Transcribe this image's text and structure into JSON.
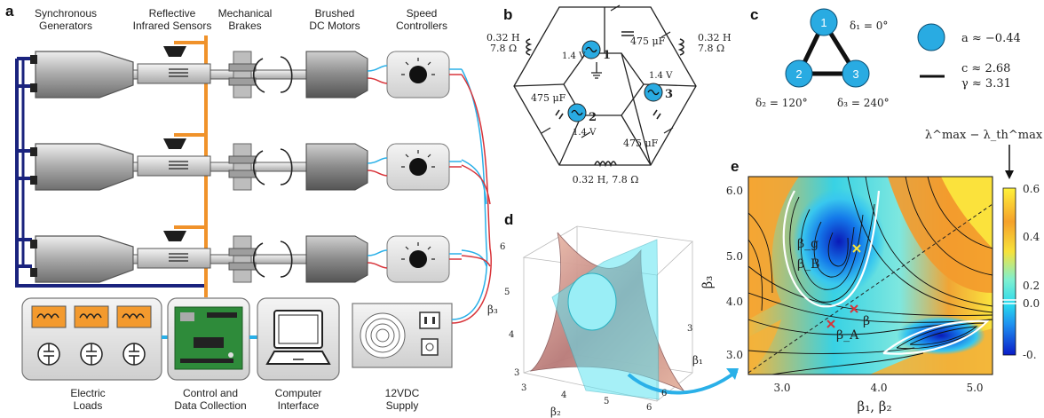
{
  "panel_a": {
    "letter": "a",
    "labels": {
      "sync_gen": [
        "Synchronous",
        "Generators"
      ],
      "ir_sensors": [
        "Reflective",
        "Infrared Sensors"
      ],
      "brakes": [
        "Mechanical",
        "Brakes"
      ],
      "dc_motors": [
        "Brushed",
        "DC Motors"
      ],
      "speed_ctrl": [
        "Speed",
        "Controllers"
      ],
      "loads": [
        "Electric",
        "Loads"
      ],
      "control": [
        "Control and",
        "Data Collection"
      ],
      "computer": [
        "Computer",
        "Interface"
      ],
      "supply": [
        "12VDC",
        "Supply"
      ]
    }
  },
  "panel_b": {
    "letter": "b",
    "inductor_label": "0.32 H",
    "resistor_label": "7.8 Ω",
    "bottom_label": "0.32 H, 7.8 Ω",
    "capacitor_label": "475 μF",
    "source_voltage": "1.4 V",
    "node_numbers": [
      "1",
      "2",
      "3"
    ]
  },
  "panel_c": {
    "letter": "c",
    "nodes": [
      "1",
      "2",
      "3"
    ],
    "delta1": "δ₁ = 0°",
    "delta2": "δ₂ = 120°",
    "delta3": "δ₃ = 240°",
    "a_text": "a ≈ −0.44",
    "c_text": "c ≈ 2.68",
    "gamma_text": "γ ≈ 3.31"
  },
  "panel_d": {
    "letter": "d",
    "axis_beta1": "β₁",
    "axis_beta2": "β₂",
    "axis_beta3": "β₃",
    "ticks_b2": [
      "3",
      "4",
      "5",
      "6"
    ],
    "ticks_b3": [
      "3",
      "4",
      "5",
      "6"
    ],
    "ticks_b1": [
      "3",
      "6"
    ]
  },
  "panel_e": {
    "letter": "e",
    "xlabel": "β₁, β₂",
    "ylabel": "β₃",
    "xticks": [
      "3.0",
      "4.0",
      "5.0"
    ],
    "yticks": [
      "3.0",
      "4.0",
      "5.0",
      "6.0"
    ],
    "colorbar_title": "λ^max − λ_th^max",
    "colorbar_ticks": [
      "0.6",
      "0.4",
      "0.2",
      "0.0",
      "-0."
    ],
    "point_labels": {
      "beta_g": "β_g",
      "beta_B": "β_B",
      "beta_A": "β_A",
      "beta": "β"
    }
  },
  "colors": {
    "generator_gray": "#9a9a9a",
    "wire_orange": "#f0922a",
    "wire_navy": "#1a237e",
    "wire_blue": "#2ab0e8",
    "wire_red": "#d8343a",
    "node_cyan": "#29abe2",
    "load_orange": "#f39a2e"
  }
}
